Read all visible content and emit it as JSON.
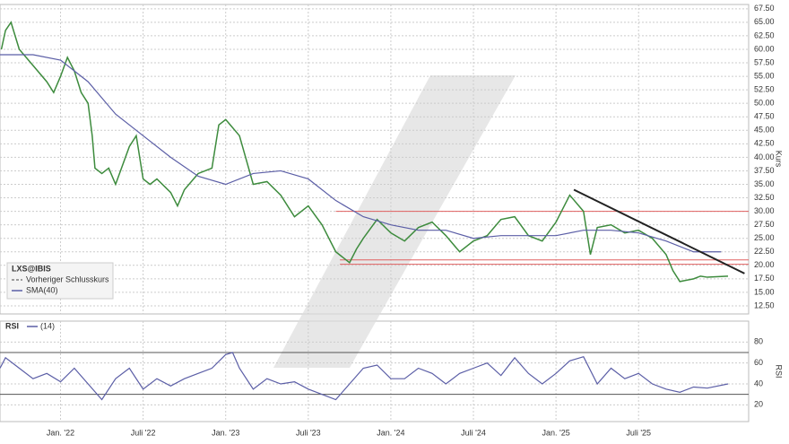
{
  "chart_data": [
    {
      "type": "line",
      "title": "LXS@IBIS",
      "y_axis_label": "Kurs",
      "previous_close_label": "Vorheriger Schlusskurs",
      "xlim": [
        -4.4,
        50
      ],
      "ylim": [
        11,
        68.3
      ],
      "grid": true,
      "xticks": [
        {
          "value": 0,
          "label": "Jan. '22"
        },
        {
          "value": 6,
          "label": "Juli '22"
        },
        {
          "value": 12,
          "label": "Jan. '23"
        },
        {
          "value": 18,
          "label": "Juli '23"
        },
        {
          "value": 24,
          "label": "Jan. '24"
        },
        {
          "value": 30,
          "label": "Juli '24"
        },
        {
          "value": 36,
          "label": "Jan. '25"
        },
        {
          "value": 42,
          "label": "Juli '25"
        }
      ],
      "yticks": [
        {
          "value": 12.5,
          "label": "12.50"
        },
        {
          "value": 15,
          "label": "15.00"
        },
        {
          "value": 17.5,
          "label": "17.50"
        },
        {
          "value": 20,
          "label": "20.00"
        },
        {
          "value": 22.5,
          "label": "22.50"
        },
        {
          "value": 25,
          "label": "25.00"
        },
        {
          "value": 27.5,
          "label": "27.50"
        },
        {
          "value": 30,
          "label": "30.00"
        },
        {
          "value": 32.5,
          "label": "32.50"
        },
        {
          "value": 35,
          "label": "35.00"
        },
        {
          "value": 37.5,
          "label": "37.50"
        },
        {
          "value": 40,
          "label": "40.00"
        },
        {
          "value": 42.5,
          "label": "42.50"
        },
        {
          "value": 45,
          "label": "45.00"
        },
        {
          "value": 47.5,
          "label": "47.50"
        },
        {
          "value": 50,
          "label": "50.00"
        },
        {
          "value": 52.5,
          "label": "52.50"
        },
        {
          "value": 55,
          "label": "55.00"
        },
        {
          "value": 57.5,
          "label": "57.50"
        },
        {
          "value": 60,
          "label": "60.00"
        },
        {
          "value": 62.5,
          "label": "62.50"
        },
        {
          "value": 65,
          "label": "65.00"
        },
        {
          "value": 67.5,
          "label": "67.50"
        }
      ],
      "series": [
        {
          "name": "LXS@IBIS",
          "color": "#3d8b3d",
          "x": [
            -4.3,
            -4,
            -3.6,
            -3,
            -2,
            -1,
            -0.5,
            0,
            0.5,
            1,
            1.5,
            2,
            2.3,
            2.5,
            3,
            3.5,
            4,
            5,
            5.5,
            6,
            6.5,
            7,
            8,
            8.5,
            9,
            10,
            11,
            11.5,
            12,
            13,
            14,
            15,
            16,
            17,
            18,
            19,
            20,
            21,
            21.5,
            22,
            23,
            24,
            25,
            26,
            27,
            28,
            29,
            30,
            31,
            32,
            33,
            34,
            35,
            36,
            37,
            38,
            38.5,
            39,
            40,
            41,
            42,
            43,
            44,
            44.5,
            45,
            46,
            46.5,
            47,
            48.5
          ],
          "values": [
            60,
            63.5,
            65,
            60,
            57,
            54,
            52,
            55,
            58.5,
            56,
            52,
            50,
            44,
            38,
            37,
            38,
            35,
            42,
            44,
            36,
            35,
            36,
            33.5,
            31,
            34,
            37,
            38,
            46,
            47,
            44,
            35,
            35.5,
            33,
            29,
            31,
            27.5,
            22.5,
            20.5,
            23,
            25,
            28.5,
            26,
            24.5,
            27,
            28,
            25.5,
            22.5,
            24.5,
            25.5,
            28.5,
            29,
            25.5,
            24.5,
            28,
            33,
            30,
            22,
            27,
            27.5,
            26,
            26.5,
            25,
            22,
            19,
            17,
            17.5,
            18,
            17.8,
            18
          ]
        },
        {
          "name": "SMA(40)",
          "color": "#5b5ea6",
          "x": [
            -4.4,
            -2,
            0,
            2,
            4,
            6,
            8,
            10,
            12,
            14,
            16,
            18,
            20,
            22,
            24,
            26,
            28,
            30,
            32,
            34,
            36,
            38,
            40,
            42,
            44,
            46,
            48
          ],
          "values": [
            59,
            59,
            58,
            54,
            48,
            44,
            40,
            36.5,
            35,
            37,
            37.5,
            36,
            32,
            29,
            27.5,
            26.5,
            26.5,
            25,
            25.5,
            25.5,
            25.5,
            26.5,
            26.5,
            26,
            24.5,
            22.5,
            22.5
          ]
        }
      ],
      "levels": [
        {
          "start": 20,
          "value": 30,
          "color": "#e06060"
        },
        {
          "start": 20.3,
          "value": 21,
          "color": "#e06060"
        },
        {
          "start": 20.3,
          "value": 20.2,
          "color": "#e06060"
        }
      ],
      "trendline": {
        "x": [
          37.3,
          49.7
        ],
        "values": [
          34,
          18.5
        ],
        "color": "#222"
      }
    },
    {
      "type": "line",
      "title": "RSI",
      "y_axis_label": "RSI",
      "period_label": "(14)",
      "xlim": [
        -4.4,
        50
      ],
      "ylim": [
        4,
        100
      ],
      "grid": true,
      "yticks": [
        20,
        40,
        60,
        80
      ],
      "bands": [
        30,
        70
      ],
      "series": [
        {
          "name": "RSI",
          "color": "#5b5ea6",
          "x": [
            -4.4,
            -4,
            -3,
            -2,
            -1,
            0,
            1,
            2,
            3,
            4,
            5,
            6,
            7,
            8,
            9,
            10,
            11,
            12,
            12.5,
            13,
            14,
            15,
            16,
            17,
            18,
            19,
            20,
            21,
            22,
            23,
            24,
            25,
            26,
            27,
            28,
            29,
            30,
            31,
            32,
            33,
            34,
            35,
            36,
            37,
            38,
            39,
            40,
            41,
            42,
            43,
            44,
            45,
            46,
            47,
            48.5
          ],
          "values": [
            55,
            65,
            55,
            45,
            50,
            42,
            55,
            40,
            25,
            45,
            55,
            35,
            45,
            38,
            45,
            50,
            55,
            68,
            70,
            55,
            35,
            45,
            40,
            42,
            35,
            30,
            25,
            40,
            55,
            58,
            45,
            45,
            55,
            50,
            40,
            50,
            55,
            60,
            48,
            65,
            50,
            40,
            50,
            62,
            66,
            40,
            55,
            45,
            50,
            40,
            35,
            32,
            37,
            36,
            40
          ]
        }
      ]
    }
  ]
}
